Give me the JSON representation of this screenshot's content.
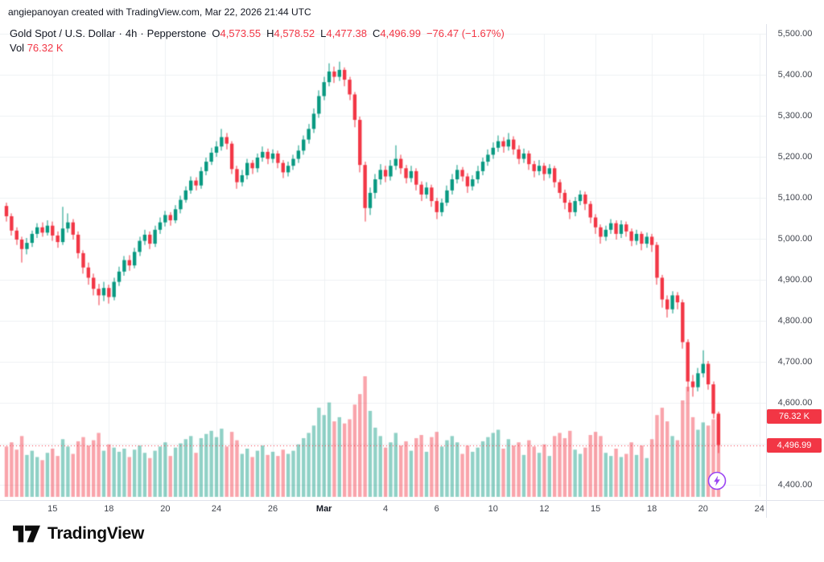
{
  "attribution": "angiepanoyan created with TradingView.com, Mar 22, 2026 21:44 UTC",
  "header": {
    "symbol": "Gold Spot / U.S. Dollar",
    "sep": "·",
    "interval": "4h",
    "exchange": "Pepperstone",
    "ohlc": {
      "o_label": "O",
      "o": "4,573.55",
      "h_label": "H",
      "h": "4,578.52",
      "l_label": "L",
      "l": "4,477.38",
      "c_label": "C",
      "c": "4,496.99",
      "change": "−76.47 (−1.67%)"
    },
    "vol_label": "Vol",
    "vol_value": "76.32 K"
  },
  "axis": {
    "price_ticks": [
      "5,500.00",
      "5,400.00",
      "5,300.00",
      "5,200.00",
      "5,100.00",
      "5,000.00",
      "4,900.00",
      "4,800.00",
      "4,700.00",
      "4,600.00",
      "4,500.00",
      "4,400.00"
    ],
    "time_ticks": [
      {
        "label": "15",
        "index": 9
      },
      {
        "label": "18",
        "index": 20
      },
      {
        "label": "20",
        "index": 31
      },
      {
        "label": "24",
        "index": 41
      },
      {
        "label": "26",
        "index": 52
      },
      {
        "label": "Mar",
        "index": 62,
        "strong": true
      },
      {
        "label": "4",
        "index": 74
      },
      {
        "label": "6",
        "index": 84
      },
      {
        "label": "10",
        "index": 95
      },
      {
        "label": "12",
        "index": 105
      },
      {
        "label": "15",
        "index": 115
      },
      {
        "label": "18",
        "index": 126
      },
      {
        "label": "20",
        "index": 136
      },
      {
        "label": "24",
        "index": 147
      }
    ],
    "vol_badge": "76.32 K",
    "price_badge": "4,496.99"
  },
  "footer": {
    "brand": "TradingView"
  },
  "chart_data": {
    "type": "candlestick",
    "title": "Gold Spot / U.S. Dollar",
    "interval": "4h",
    "exchange": "Pepperstone",
    "ylim": [
      4400,
      5500
    ],
    "grid": true,
    "last": {
      "o": 4573.55,
      "h": 4578.52,
      "l": 4477.38,
      "c": 4496.99,
      "change": -76.47,
      "change_pct": -1.67,
      "volume_k": 76.32
    },
    "colors": {
      "up": "#089981",
      "down": "#f23645",
      "vol_up": "rgba(8,153,129,0.45)",
      "vol_down": "rgba(242,54,69,0.45)",
      "grid": "#eef0f3",
      "last_price_line": "#f23645",
      "badge": "#f23645"
    },
    "volume_max_k": 115,
    "candles": [
      [
        5080,
        5088,
        5042,
        5055,
        48
      ],
      [
        5055,
        5062,
        5008,
        5020,
        52
      ],
      [
        5020,
        5028,
        4985,
        4998,
        45
      ],
      [
        4998,
        5005,
        4942,
        4975,
        58
      ],
      [
        4975,
        5002,
        4962,
        4990,
        40
      ],
      [
        4990,
        5020,
        4980,
        5012,
        44
      ],
      [
        5012,
        5038,
        5002,
        5028,
        38
      ],
      [
        5028,
        5040,
        5005,
        5015,
        35
      ],
      [
        5015,
        5045,
        5008,
        5032,
        42
      ],
      [
        5032,
        5042,
        4995,
        5008,
        46
      ],
      [
        5008,
        5018,
        4978,
        4992,
        39
      ],
      [
        4992,
        5078,
        4985,
        5025,
        55
      ],
      [
        5025,
        5062,
        5015,
        5040,
        48
      ],
      [
        5040,
        5048,
        4998,
        5010,
        41
      ],
      [
        5010,
        5018,
        4952,
        4965,
        53
      ],
      [
        4965,
        4972,
        4915,
        4930,
        57
      ],
      [
        4930,
        4942,
        4888,
        4905,
        49
      ],
      [
        4905,
        4915,
        4862,
        4878,
        54
      ],
      [
        4878,
        4890,
        4838,
        4862,
        61
      ],
      [
        4862,
        4895,
        4848,
        4880,
        44
      ],
      [
        4880,
        4888,
        4842,
        4858,
        50
      ],
      [
        4858,
        4905,
        4850,
        4895,
        47
      ],
      [
        4895,
        4932,
        4885,
        4920,
        43
      ],
      [
        4920,
        4958,
        4910,
        4948,
        46
      ],
      [
        4948,
        4960,
        4922,
        4935,
        38
      ],
      [
        4935,
        4978,
        4928,
        4968,
        45
      ],
      [
        4968,
        5005,
        4958,
        4995,
        49
      ],
      [
        4995,
        5022,
        4985,
        5010,
        42
      ],
      [
        5010,
        5018,
        4975,
        4988,
        37
      ],
      [
        4988,
        5032,
        4980,
        5022,
        44
      ],
      [
        5022,
        5052,
        5012,
        5040,
        48
      ],
      [
        5040,
        5068,
        5030,
        5058,
        52
      ],
      [
        5058,
        5065,
        5032,
        5045,
        39
      ],
      [
        5045,
        5082,
        5038,
        5072,
        47
      ],
      [
        5072,
        5105,
        5062,
        5095,
        51
      ],
      [
        5095,
        5128,
        5088,
        5118,
        55
      ],
      [
        5118,
        5152,
        5110,
        5142,
        58
      ],
      [
        5142,
        5150,
        5118,
        5130,
        42
      ],
      [
        5130,
        5175,
        5122,
        5165,
        56
      ],
      [
        5165,
        5198,
        5155,
        5188,
        60
      ],
      [
        5188,
        5222,
        5180,
        5210,
        63
      ],
      [
        5210,
        5238,
        5200,
        5225,
        57
      ],
      [
        5225,
        5268,
        5215,
        5248,
        65
      ],
      [
        5248,
        5258,
        5218,
        5232,
        48
      ],
      [
        5232,
        5238,
        5158,
        5170,
        62
      ],
      [
        5170,
        5178,
        5122,
        5138,
        54
      ],
      [
        5138,
        5168,
        5128,
        5155,
        41
      ],
      [
        5155,
        5195,
        5145,
        5185,
        46
      ],
      [
        5185,
        5192,
        5158,
        5172,
        38
      ],
      [
        5172,
        5208,
        5162,
        5198,
        44
      ],
      [
        5198,
        5225,
        5188,
        5212,
        49
      ],
      [
        5212,
        5220,
        5182,
        5195,
        40
      ],
      [
        5195,
        5218,
        5185,
        5208,
        43
      ],
      [
        5208,
        5215,
        5172,
        5185,
        39
      ],
      [
        5185,
        5192,
        5148,
        5162,
        45
      ],
      [
        5162,
        5188,
        5152,
        5178,
        41
      ],
      [
        5178,
        5205,
        5168,
        5195,
        44
      ],
      [
        5195,
        5228,
        5185,
        5215,
        50
      ],
      [
        5215,
        5252,
        5205,
        5242,
        56
      ],
      [
        5242,
        5280,
        5232,
        5268,
        61
      ],
      [
        5268,
        5318,
        5258,
        5305,
        68
      ],
      [
        5305,
        5362,
        5295,
        5348,
        85
      ],
      [
        5348,
        5395,
        5338,
        5382,
        78
      ],
      [
        5382,
        5428,
        5372,
        5408,
        90
      ],
      [
        5408,
        5420,
        5380,
        5395,
        72
      ],
      [
        5395,
        5432,
        5385,
        5412,
        76
      ],
      [
        5412,
        5418,
        5372,
        5388,
        70
      ],
      [
        5388,
        5395,
        5338,
        5352,
        74
      ],
      [
        5352,
        5358,
        5272,
        5290,
        88
      ],
      [
        5290,
        5298,
        5162,
        5180,
        98
      ],
      [
        5180,
        5188,
        5042,
        5075,
        115
      ],
      [
        5075,
        5125,
        5058,
        5112,
        82
      ],
      [
        5112,
        5158,
        5098,
        5145,
        66
      ],
      [
        5145,
        5182,
        5132,
        5168,
        58
      ],
      [
        5168,
        5178,
        5138,
        5152,
        47
      ],
      [
        5152,
        5192,
        5142,
        5178,
        52
      ],
      [
        5178,
        5228,
        5168,
        5195,
        61
      ],
      [
        5195,
        5205,
        5158,
        5172,
        49
      ],
      [
        5172,
        5180,
        5135,
        5148,
        53
      ],
      [
        5148,
        5178,
        5138,
        5165,
        44
      ],
      [
        5165,
        5172,
        5118,
        5132,
        56
      ],
      [
        5132,
        5140,
        5092,
        5108,
        59
      ],
      [
        5108,
        5138,
        5098,
        5125,
        43
      ],
      [
        5125,
        5132,
        5078,
        5092,
        57
      ],
      [
        5092,
        5100,
        5048,
        5065,
        62
      ],
      [
        5065,
        5098,
        5055,
        5088,
        48
      ],
      [
        5088,
        5130,
        5080,
        5118,
        54
      ],
      [
        5118,
        5158,
        5108,
        5145,
        58
      ],
      [
        5145,
        5180,
        5135,
        5168,
        52
      ],
      [
        5168,
        5175,
        5140,
        5152,
        41
      ],
      [
        5152,
        5160,
        5112,
        5128,
        49
      ],
      [
        5128,
        5155,
        5118,
        5145,
        43
      ],
      [
        5145,
        5178,
        5135,
        5165,
        47
      ],
      [
        5165,
        5198,
        5155,
        5188,
        53
      ],
      [
        5188,
        5218,
        5178,
        5205,
        57
      ],
      [
        5205,
        5235,
        5195,
        5222,
        61
      ],
      [
        5222,
        5252,
        5212,
        5238,
        64
      ],
      [
        5238,
        5248,
        5210,
        5225,
        46
      ],
      [
        5225,
        5258,
        5215,
        5242,
        55
      ],
      [
        5242,
        5250,
        5205,
        5218,
        49
      ],
      [
        5218,
        5228,
        5182,
        5195,
        52
      ],
      [
        5195,
        5220,
        5185,
        5208,
        40
      ],
      [
        5208,
        5215,
        5168,
        5182,
        54
      ],
      [
        5182,
        5190,
        5150,
        5165,
        48
      ],
      [
        5165,
        5192,
        5155,
        5178,
        42
      ],
      [
        5178,
        5185,
        5142,
        5158,
        50
      ],
      [
        5158,
        5182,
        5148,
        5172,
        39
      ],
      [
        5172,
        5178,
        5125,
        5138,
        58
      ],
      [
        5138,
        5145,
        5098,
        5112,
        61
      ],
      [
        5112,
        5120,
        5072,
        5088,
        56
      ],
      [
        5088,
        5095,
        5048,
        5065,
        63
      ],
      [
        5065,
        5102,
        5055,
        5092,
        45
      ],
      [
        5092,
        5118,
        5082,
        5108,
        41
      ],
      [
        5108,
        5115,
        5070,
        5085,
        47
      ],
      [
        5085,
        5092,
        5038,
        5052,
        59
      ],
      [
        5052,
        5060,
        5012,
        5028,
        62
      ],
      [
        5028,
        5035,
        4988,
        5005,
        58
      ],
      [
        5005,
        5032,
        4995,
        5022,
        42
      ],
      [
        5022,
        5048,
        5012,
        5038,
        39
      ],
      [
        5038,
        5045,
        4998,
        5012,
        46
      ],
      [
        5012,
        5045,
        5002,
        5035,
        38
      ],
      [
        5035,
        5042,
        5005,
        5018,
        41
      ],
      [
        5018,
        5025,
        4982,
        4995,
        52
      ],
      [
        4995,
        5022,
        4985,
        5012,
        40
      ],
      [
        5012,
        5018,
        4972,
        4988,
        49
      ],
      [
        4988,
        5015,
        4978,
        5005,
        37
      ],
      [
        5005,
        5012,
        4968,
        4985,
        55
      ],
      [
        4985,
        4992,
        4888,
        4905,
        78
      ],
      [
        4905,
        4912,
        4832,
        4852,
        85
      ],
      [
        4852,
        4862,
        4808,
        4828,
        72
      ],
      [
        4828,
        4872,
        4818,
        4862,
        58
      ],
      [
        4862,
        4870,
        4828,
        4845,
        54
      ],
      [
        4845,
        4852,
        4732,
        4748,
        92
      ],
      [
        4748,
        4755,
        4628,
        4652,
        105
      ],
      [
        4652,
        4668,
        4615,
        4638,
        76
      ],
      [
        4638,
        4685,
        4628,
        4672,
        64
      ],
      [
        4672,
        4728,
        4662,
        4695,
        71
      ],
      [
        4695,
        4702,
        4632,
        4645,
        68
      ],
      [
        4645,
        4652,
        4562,
        4573.55,
        74
      ],
      [
        4573.55,
        4578.52,
        4477.38,
        4496.99,
        76.32
      ]
    ]
  }
}
